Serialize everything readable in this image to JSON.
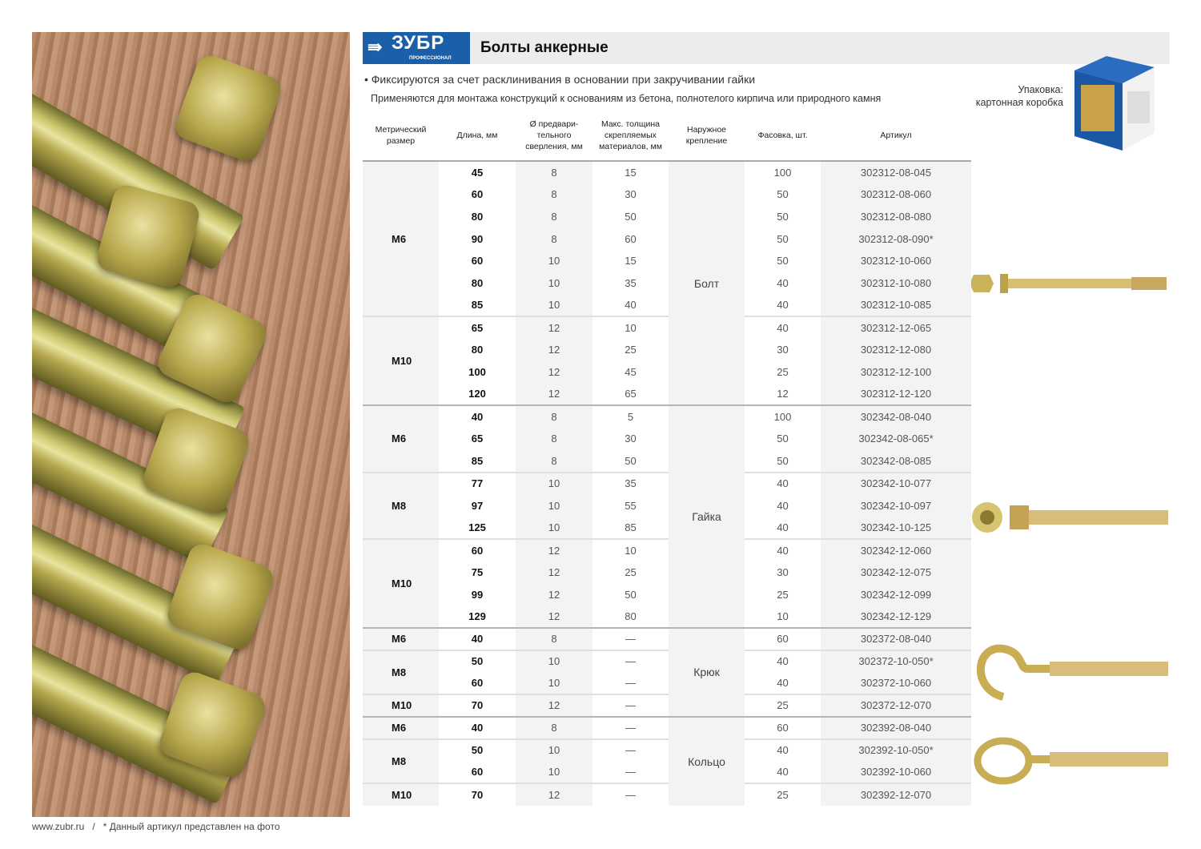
{
  "header": {
    "logo_brand": "ЗУБР",
    "logo_sub": "ПРОФЕССИОНАЛ",
    "title": "Болты анкерные",
    "brand_color": "#1a5fa8"
  },
  "bullet1": "• Фиксируются за счет расклинивания в основании при закручивании гайки",
  "bullet2": "Применяются для монтажа конструкций к основаниям из бетона, полнотелого кирпича или природного камня",
  "packaging": {
    "label": "Упаковка:",
    "value": "картонная коробка"
  },
  "table": {
    "columns": [
      "Метрический размер",
      "Длина, мм",
      "Ø предвари-тельного сверления, мм",
      "Макс. толщина скрепляемых материалов, мм",
      "Наружное крепление",
      "Фасовка, шт.",
      "Артикул"
    ],
    "types": [
      {
        "mount": "Болт",
        "groups": [
          {
            "size": "M6",
            "rows": [
              [
                "45",
                "8",
                "15",
                "100",
                "302312-08-045"
              ],
              [
                "60",
                "8",
                "30",
                "50",
                "302312-08-060"
              ],
              [
                "80",
                "8",
                "50",
                "50",
                "302312-08-080"
              ],
              [
                "90",
                "8",
                "60",
                "50",
                "302312-08-090*"
              ],
              [
                "60",
                "10",
                "15",
                "50",
                "302312-10-060"
              ],
              [
                "80",
                "10",
                "35",
                "40",
                "302312-10-080"
              ],
              [
                "85",
                "10",
                "40",
                "40",
                "302312-10-085"
              ]
            ]
          },
          {
            "size": "M10",
            "rows": [
              [
                "65",
                "12",
                "10",
                "40",
                "302312-12-065"
              ],
              [
                "80",
                "12",
                "25",
                "30",
                "302312-12-080"
              ],
              [
                "100",
                "12",
                "45",
                "25",
                "302312-12-100"
              ],
              [
                "120",
                "12",
                "65",
                "12",
                "302312-12-120"
              ]
            ]
          }
        ]
      },
      {
        "mount": "Гайка",
        "groups": [
          {
            "size": "M6",
            "rows": [
              [
                "40",
                "8",
                "5",
                "100",
                "302342-08-040"
              ],
              [
                "65",
                "8",
                "30",
                "50",
                "302342-08-065*"
              ],
              [
                "85",
                "8",
                "50",
                "50",
                "302342-08-085"
              ]
            ]
          },
          {
            "size": "M8",
            "rows": [
              [
                "77",
                "10",
                "35",
                "40",
                "302342-10-077"
              ],
              [
                "97",
                "10",
                "55",
                "40",
                "302342-10-097"
              ],
              [
                "125",
                "10",
                "85",
                "40",
                "302342-10-125"
              ]
            ]
          },
          {
            "size": "M10",
            "rows": [
              [
                "60",
                "12",
                "10",
                "40",
                "302342-12-060"
              ],
              [
                "75",
                "12",
                "25",
                "30",
                "302342-12-075"
              ],
              [
                "99",
                "12",
                "50",
                "25",
                "302342-12-099"
              ],
              [
                "129",
                "12",
                "80",
                "10",
                "302342-12-129"
              ]
            ]
          }
        ]
      },
      {
        "mount": "Крюк",
        "groups": [
          {
            "size": "M6",
            "rows": [
              [
                "40",
                "8",
                "—",
                "60",
                "302372-08-040"
              ]
            ]
          },
          {
            "size": "M8",
            "rows": [
              [
                "50",
                "10",
                "—",
                "40",
                "302372-10-050*"
              ],
              [
                "60",
                "10",
                "—",
                "40",
                "302372-10-060"
              ]
            ]
          },
          {
            "size": "M10",
            "rows": [
              [
                "70",
                "12",
                "—",
                "25",
                "302372-12-070"
              ]
            ]
          }
        ]
      },
      {
        "mount": "Кольцо",
        "groups": [
          {
            "size": "M6",
            "rows": [
              [
                "40",
                "8",
                "—",
                "60",
                "302392-08-040"
              ]
            ]
          },
          {
            "size": "M8",
            "rows": [
              [
                "50",
                "10",
                "—",
                "40",
                "302392-10-050*"
              ],
              [
                "60",
                "10",
                "—",
                "40",
                "302392-10-060"
              ]
            ]
          },
          {
            "size": "M10",
            "rows": [
              [
                "70",
                "12",
                "—",
                "25",
                "302392-12-070"
              ]
            ]
          }
        ]
      }
    ]
  },
  "footer": {
    "site": "www.zubr.ru",
    "separator": "/",
    "note": "* Данный артикул представлен на фото"
  }
}
